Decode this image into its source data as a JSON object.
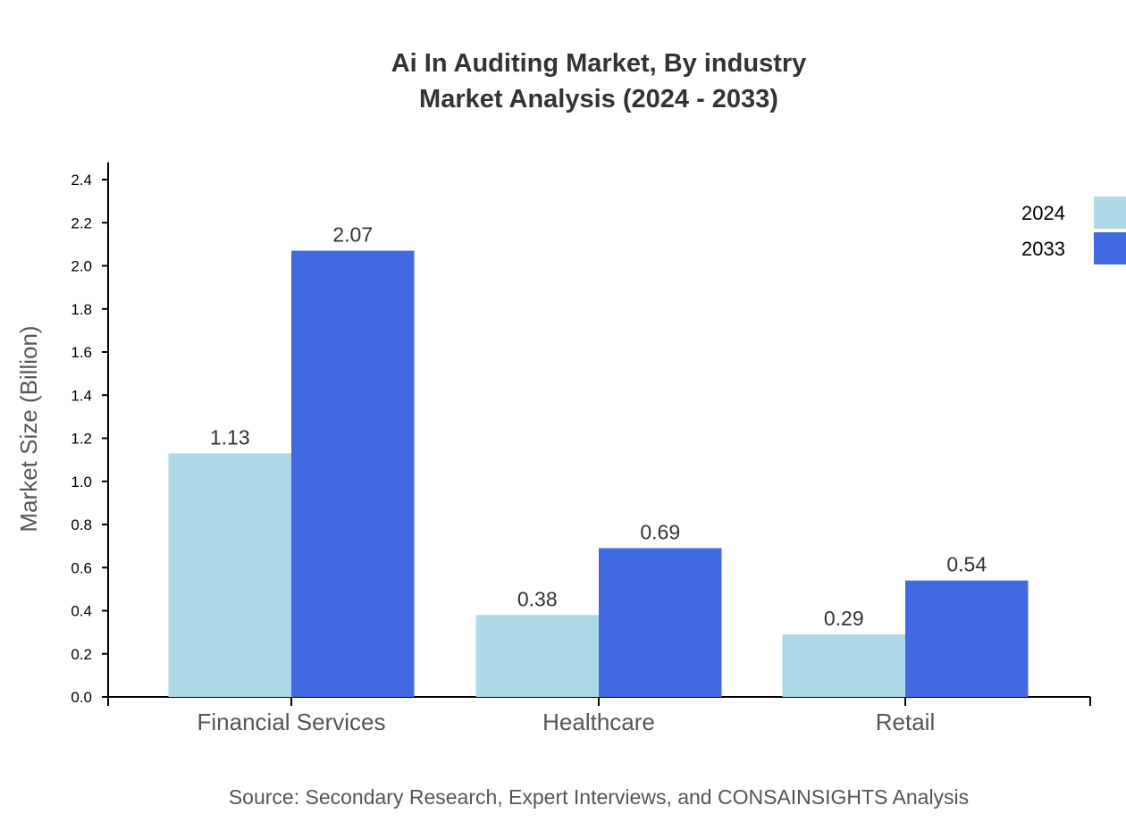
{
  "chart_data": {
    "type": "bar",
    "title": "Ai In Auditing Market, By industry",
    "subtitle": "Market Analysis (2024 - 2033)",
    "xlabel": "",
    "ylabel": "Market Size (Billion)",
    "ylim": [
      0,
      2.48
    ],
    "yticks": [
      "0.0",
      "0.2",
      "0.4",
      "0.6",
      "0.8",
      "1.0",
      "1.2",
      "1.4",
      "1.6",
      "1.8",
      "2.0",
      "2.2",
      "2.4"
    ],
    "categories": [
      "Financial Services",
      "Healthcare",
      "Retail"
    ],
    "series": [
      {
        "name": "2024",
        "color": "#add8e6",
        "values": [
          1.13,
          0.38,
          0.29
        ]
      },
      {
        "name": "2033",
        "color": "#4169e1",
        "values": [
          2.07,
          0.69,
          0.54
        ]
      }
    ],
    "legend_position": "top-right",
    "grid": false,
    "source": "Source: Secondary Research, Expert Interviews, and CONSAINSIGHTS Analysis"
  }
}
